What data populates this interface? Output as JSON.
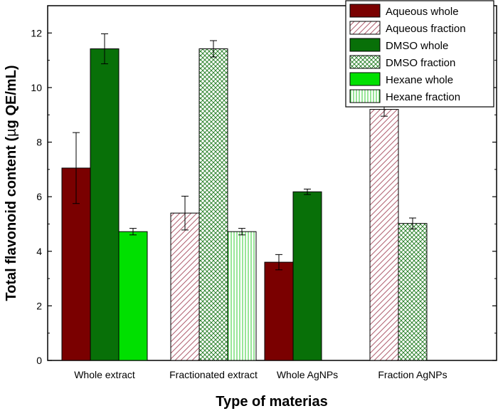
{
  "chart_data": {
    "type": "bar",
    "title": "",
    "xlabel": "Type of materias",
    "ylabel": "Total flavonoid content (µg QE/mL)",
    "ylabel_parts": {
      "before": "Total flavonoid content (",
      "mu": "µ",
      "after": "g QE/mL)"
    },
    "ylim": [
      0,
      13
    ],
    "yticks": [
      "0",
      "2",
      "4",
      "6",
      "8",
      "10",
      "12"
    ],
    "ytick_values": [
      0,
      2,
      4,
      6,
      8,
      10,
      12
    ],
    "categories": [
      "Whole extract",
      "Fractionated extract",
      "Whole AgNPs",
      "Fraction AgNPs"
    ],
    "legend_position": "top-right",
    "series": [
      {
        "name": "Aqueous whole",
        "color": "#7a0000",
        "pattern": "solid",
        "values": [
          7.05,
          null,
          3.6,
          null
        ],
        "errors": [
          1.3,
          null,
          0.28,
          null
        ]
      },
      {
        "name": "Aqueous fraction",
        "color": "#b06070",
        "pattern": "diagonal",
        "values": [
          null,
          5.4,
          null,
          9.2
        ],
        "errors": [
          null,
          0.62,
          null,
          0.25
        ]
      },
      {
        "name": "DMSO whole",
        "color": "#087008",
        "pattern": "solid",
        "values": [
          11.42,
          null,
          6.18,
          null
        ],
        "errors": [
          0.55,
          null,
          0.1,
          null
        ]
      },
      {
        "name": "DMSO fraction",
        "color": "#1e7a1e",
        "pattern": "crosshatch",
        "values": [
          null,
          11.42,
          null,
          5.02
        ],
        "errors": [
          null,
          0.3,
          null,
          0.2
        ]
      },
      {
        "name": "Hexane whole",
        "color": "#00e000",
        "pattern": "solid",
        "values": [
          4.72,
          null,
          null,
          null
        ],
        "errors": [
          0.12,
          null,
          null,
          null
        ]
      },
      {
        "name": "Hexane fraction",
        "color": "#33cc33",
        "pattern": "vertical",
        "values": [
          null,
          4.72,
          null,
          null
        ],
        "errors": [
          null,
          0.12,
          null,
          null
        ]
      }
    ]
  }
}
